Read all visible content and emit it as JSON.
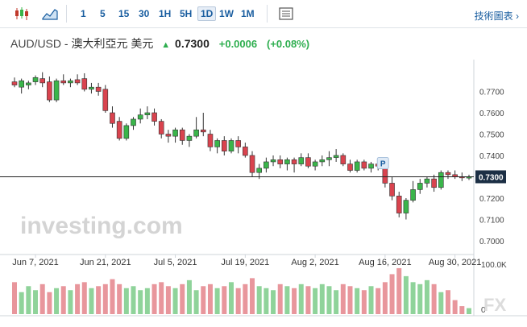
{
  "toolbar": {
    "timeframes": [
      "1",
      "5",
      "15",
      "30",
      "1H",
      "5H",
      "1D",
      "1W",
      "1M"
    ],
    "active_timeframe": "1D",
    "technical_label": "技術圖表"
  },
  "header": {
    "pair": "AUD/USD",
    "name": "澳大利亞元 美元",
    "price": "0.7300",
    "change": "+0.0006",
    "change_pct": "(+0.08%)"
  },
  "watermark": "investing.com",
  "watermark2": "FX",
  "current_price_label": "0.7300",
  "marker_label": "P",
  "colors": {
    "up": "#3ab54a",
    "down": "#d9434e",
    "vol_up": "#8fd39a",
    "vol_down": "#e8969c",
    "link": "#1a5ea0"
  },
  "chart_data": {
    "type": "candlestick",
    "title": "AUD/USD - 澳大利亞元 美元",
    "ylim": [
      0.7,
      0.78
    ],
    "yticks": [
      "0.7700",
      "0.7600",
      "0.7500",
      "0.7400",
      "0.7300",
      "0.7200",
      "0.7100",
      "0.7000"
    ],
    "xticks": [
      {
        "label": "Jun 7, 2021",
        "index": 3
      },
      {
        "label": "Jun 21, 2021",
        "index": 13
      },
      {
        "label": "Jul 5, 2021",
        "index": 23
      },
      {
        "label": "Jul 19, 2021",
        "index": 33
      },
      {
        "label": "Aug 2, 2021",
        "index": 43
      },
      {
        "label": "Aug 16, 2021",
        "index": 53
      },
      {
        "label": "Aug 30, 2021",
        "index": 63
      }
    ],
    "volume_axis": [
      "100.0K",
      "0"
    ],
    "ohlc": [
      [
        0.7745,
        0.7765,
        0.772,
        0.773
      ],
      [
        0.772,
        0.776,
        0.769,
        0.775
      ],
      [
        0.773,
        0.775,
        0.771,
        0.774
      ],
      [
        0.7745,
        0.7775,
        0.773,
        0.7765
      ],
      [
        0.776,
        0.779,
        0.772,
        0.774
      ],
      [
        0.7745,
        0.777,
        0.765,
        0.766
      ],
      [
        0.766,
        0.776,
        0.765,
        0.775
      ],
      [
        0.775,
        0.778,
        0.773,
        0.774
      ],
      [
        0.774,
        0.776,
        0.772,
        0.775
      ],
      [
        0.7755,
        0.778,
        0.773,
        0.774
      ],
      [
        0.776,
        0.7785,
        0.77,
        0.771
      ],
      [
        0.771,
        0.774,
        0.769,
        0.772
      ],
      [
        0.772,
        0.774,
        0.768,
        0.77
      ],
      [
        0.771,
        0.773,
        0.76,
        0.761
      ],
      [
        0.76,
        0.763,
        0.753,
        0.755
      ],
      [
        0.756,
        0.758,
        0.747,
        0.748
      ],
      [
        0.748,
        0.755,
        0.747,
        0.754
      ],
      [
        0.754,
        0.758,
        0.752,
        0.757
      ],
      [
        0.757,
        0.762,
        0.755,
        0.759
      ],
      [
        0.759,
        0.763,
        0.757,
        0.76
      ],
      [
        0.76,
        0.762,
        0.754,
        0.756
      ],
      [
        0.756,
        0.757,
        0.748,
        0.75
      ],
      [
        0.75,
        0.752,
        0.746,
        0.749
      ],
      [
        0.749,
        0.753,
        0.746,
        0.752
      ],
      [
        0.752,
        0.753,
        0.745,
        0.747
      ],
      [
        0.747,
        0.75,
        0.744,
        0.749
      ],
      [
        0.749,
        0.758,
        0.748,
        0.752
      ],
      [
        0.752,
        0.76,
        0.749,
        0.751
      ],
      [
        0.75,
        0.752,
        0.742,
        0.744
      ],
      [
        0.744,
        0.748,
        0.741,
        0.747
      ],
      [
        0.747,
        0.749,
        0.74,
        0.742
      ],
      [
        0.742,
        0.748,
        0.741,
        0.747
      ],
      [
        0.747,
        0.749,
        0.741,
        0.744
      ],
      [
        0.744,
        0.746,
        0.739,
        0.74
      ],
      [
        0.74,
        0.742,
        0.73,
        0.732
      ],
      [
        0.732,
        0.736,
        0.729,
        0.734
      ],
      [
        0.734,
        0.739,
        0.732,
        0.737
      ],
      [
        0.737,
        0.74,
        0.735,
        0.738
      ],
      [
        0.738,
        0.74,
        0.734,
        0.736
      ],
      [
        0.736,
        0.739,
        0.733,
        0.738
      ],
      [
        0.738,
        0.739,
        0.732,
        0.736
      ],
      [
        0.736,
        0.741,
        0.735,
        0.739
      ],
      [
        0.739,
        0.741,
        0.734,
        0.735
      ],
      [
        0.735,
        0.738,
        0.733,
        0.737
      ],
      [
        0.737,
        0.74,
        0.735,
        0.738
      ],
      [
        0.738,
        0.742,
        0.735,
        0.739
      ],
      [
        0.739,
        0.743,
        0.737,
        0.74
      ],
      [
        0.74,
        0.741,
        0.735,
        0.736
      ],
      [
        0.736,
        0.738,
        0.732,
        0.733
      ],
      [
        0.733,
        0.738,
        0.732,
        0.737
      ],
      [
        0.737,
        0.738,
        0.733,
        0.734
      ],
      [
        0.734,
        0.737,
        0.732,
        0.736
      ],
      [
        0.736,
        0.738,
        0.733,
        0.735
      ],
      [
        0.735,
        0.736,
        0.725,
        0.727
      ],
      [
        0.727,
        0.73,
        0.719,
        0.721
      ],
      [
        0.721,
        0.723,
        0.711,
        0.713
      ],
      [
        0.713,
        0.72,
        0.71,
        0.719
      ],
      [
        0.719,
        0.728,
        0.718,
        0.724
      ],
      [
        0.724,
        0.729,
        0.722,
        0.727
      ],
      [
        0.727,
        0.73,
        0.725,
        0.729
      ],
      [
        0.729,
        0.731,
        0.723,
        0.725
      ],
      [
        0.725,
        0.733,
        0.724,
        0.732
      ],
      [
        0.732,
        0.733,
        0.729,
        0.731
      ],
      [
        0.731,
        0.733,
        0.729,
        0.73
      ],
      [
        0.73,
        0.732,
        0.728,
        0.7295
      ],
      [
        0.7294,
        0.731,
        0.7285,
        0.73
      ]
    ],
    "volume": [
      32,
      22,
      28,
      24,
      30,
      22,
      26,
      28,
      24,
      30,
      32,
      26,
      28,
      30,
      35,
      30,
      26,
      28,
      24,
      26,
      30,
      32,
      28,
      26,
      30,
      34,
      24,
      28,
      30,
      26,
      28,
      32,
      26,
      30,
      36,
      28,
      26,
      24,
      30,
      28,
      26,
      30,
      28,
      26,
      30,
      28,
      24,
      30,
      28,
      26,
      24,
      28,
      26,
      32,
      40,
      46,
      38,
      32,
      30,
      34,
      30,
      22,
      24,
      14,
      8,
      6
    ]
  }
}
